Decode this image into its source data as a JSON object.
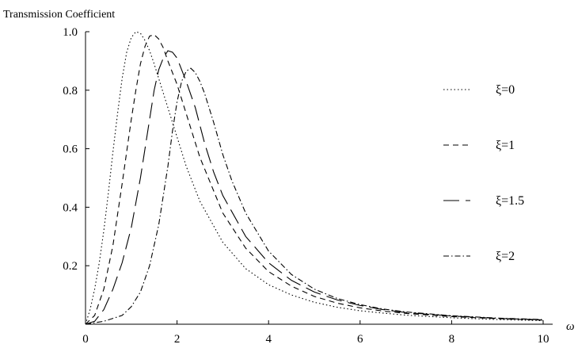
{
  "chart_data": {
    "type": "line",
    "ylabel": "Transmission Coefficient",
    "xlabel": "ω",
    "xlim": [
      0,
      10
    ],
    "ylim": [
      0,
      1.0
    ],
    "x_ticks": [
      "0",
      "2",
      "4",
      "6",
      "8",
      "10"
    ],
    "y_ticks": [
      "0.2",
      "0.4",
      "0.6",
      "0.8",
      "1.0"
    ],
    "grid": false,
    "legend_position": "right",
    "series": [
      {
        "name": "ξ=0",
        "dash": "dotted",
        "x": [
          0,
          0.1,
          0.2,
          0.3,
          0.4,
          0.5,
          0.6,
          0.7,
          0.8,
          0.9,
          1.0,
          1.1,
          1.2,
          1.3,
          1.4,
          1.5,
          1.6,
          1.8,
          2.0,
          2.2,
          2.5,
          3.0,
          3.5,
          4.0,
          4.5,
          5.0,
          5.5,
          6.0,
          6.5,
          7.0,
          8.0,
          9.0,
          10.0
        ],
        "y": [
          0,
          0.05,
          0.12,
          0.21,
          0.32,
          0.45,
          0.59,
          0.72,
          0.84,
          0.93,
          0.98,
          1.0,
          0.995,
          0.97,
          0.935,
          0.89,
          0.84,
          0.74,
          0.64,
          0.54,
          0.42,
          0.28,
          0.19,
          0.135,
          0.1,
          0.075,
          0.058,
          0.046,
          0.038,
          0.031,
          0.022,
          0.016,
          0.012
        ]
      },
      {
        "name": "ξ=1",
        "dash": "dashed",
        "x": [
          0,
          0.2,
          0.4,
          0.6,
          0.8,
          0.9,
          1.0,
          1.1,
          1.2,
          1.3,
          1.4,
          1.5,
          1.6,
          1.7,
          1.8,
          1.9,
          2.0,
          2.2,
          2.5,
          3.0,
          3.5,
          4.0,
          4.5,
          5.0,
          5.5,
          6.0,
          6.5,
          7.0,
          8.0,
          9.0,
          10.0
        ],
        "y": [
          0,
          0.03,
          0.12,
          0.27,
          0.48,
          0.59,
          0.7,
          0.8,
          0.89,
          0.95,
          0.985,
          0.99,
          0.975,
          0.945,
          0.9,
          0.86,
          0.82,
          0.72,
          0.57,
          0.38,
          0.26,
          0.18,
          0.13,
          0.095,
          0.072,
          0.056,
          0.045,
          0.037,
          0.026,
          0.019,
          0.014
        ]
      },
      {
        "name": "ξ=1.5",
        "dash": "long-dashed",
        "x": [
          0,
          0.2,
          0.4,
          0.6,
          0.8,
          1.0,
          1.2,
          1.3,
          1.4,
          1.5,
          1.6,
          1.7,
          1.8,
          1.9,
          2.0,
          2.1,
          2.2,
          2.4,
          2.6,
          2.8,
          3.0,
          3.5,
          4.0,
          4.5,
          5.0,
          5.5,
          6.0,
          6.5,
          7.0,
          8.0,
          9.0,
          10.0
        ],
        "y": [
          0,
          0.01,
          0.05,
          0.12,
          0.21,
          0.33,
          0.5,
          0.6,
          0.7,
          0.8,
          0.87,
          0.91,
          0.935,
          0.93,
          0.91,
          0.87,
          0.83,
          0.74,
          0.62,
          0.52,
          0.44,
          0.3,
          0.21,
          0.15,
          0.11,
          0.083,
          0.064,
          0.05,
          0.04,
          0.028,
          0.02,
          0.015
        ]
      },
      {
        "name": "ξ=2",
        "dash": "dash-dot",
        "x": [
          0,
          0.4,
          0.8,
          1.0,
          1.2,
          1.4,
          1.6,
          1.8,
          1.9,
          2.0,
          2.1,
          2.2,
          2.3,
          2.4,
          2.5,
          2.6,
          2.8,
          3.0,
          3.2,
          3.5,
          4.0,
          4.5,
          5.0,
          5.5,
          6.0,
          6.5,
          7.0,
          8.0,
          9.0,
          10.0
        ],
        "y": [
          0,
          0.01,
          0.03,
          0.06,
          0.11,
          0.2,
          0.34,
          0.54,
          0.66,
          0.76,
          0.83,
          0.865,
          0.875,
          0.86,
          0.83,
          0.79,
          0.69,
          0.58,
          0.49,
          0.38,
          0.25,
          0.17,
          0.12,
          0.088,
          0.067,
          0.052,
          0.042,
          0.029,
          0.021,
          0.016
        ]
      }
    ]
  }
}
